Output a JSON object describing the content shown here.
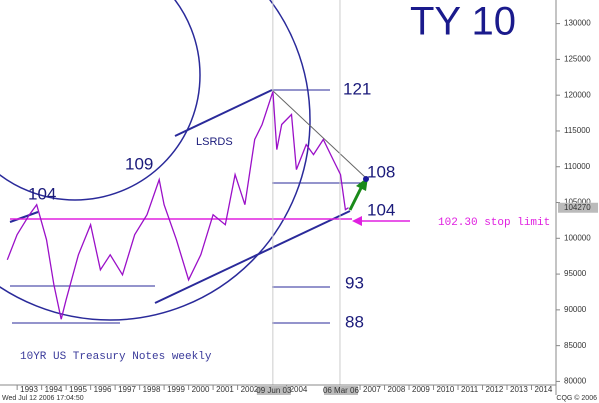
{
  "chart_data": {
    "type": "line",
    "title": "TY 10",
    "subtitle": "10YR US Treasury Notes weekly",
    "x": [
      1992.6,
      1993.0,
      1993.5,
      1993.8,
      1994.2,
      1994.5,
      1994.8,
      1995.0,
      1995.5,
      1996.0,
      1996.4,
      1996.8,
      1997.3,
      1997.8,
      1998.3,
      1998.8,
      1999.0,
      1999.5,
      2000.0,
      2000.5,
      2001.0,
      2001.5,
      2001.9,
      2002.3,
      2002.7,
      2003.0,
      2003.44,
      2003.6,
      2003.8,
      2004.2,
      2004.4,
      2004.8,
      2005.1,
      2005.5,
      2005.9,
      2006.2,
      2006.4,
      2006.53
    ],
    "values": [
      97000,
      100500,
      103300,
      104700,
      99800,
      93500,
      88700,
      91400,
      97700,
      101900,
      95600,
      97700,
      94900,
      100500,
      103300,
      108200,
      104700,
      99800,
      94200,
      97700,
      103300,
      101900,
      108900,
      104700,
      113800,
      115900,
      120500,
      112400,
      115900,
      117300,
      109600,
      113100,
      111700,
      113800,
      111000,
      108900,
      104000,
      104270
    ],
    "color": "#9b10c8",
    "xlim": [
      1992.3,
      2015.0
    ],
    "xticks": [
      1993,
      1994,
      1995,
      1996,
      1997,
      1998,
      1999,
      2000,
      2001,
      2002,
      2004,
      2007,
      2008,
      2009,
      2010,
      2011,
      2012,
      2013,
      2014
    ],
    "ylim": [
      79500,
      133300
    ],
    "yticks": [
      80000,
      85000,
      90000,
      95000,
      100000,
      105000,
      110000,
      115000,
      120000,
      125000,
      130000
    ],
    "last_value": 104270,
    "x_markers": [
      {
        "x": 2003.44,
        "label": "09 Jun 03"
      },
      {
        "x": 2006.18,
        "label": "06 Mar 06"
      }
    ],
    "annotations": [
      "104",
      "109",
      "LSRDS",
      "121",
      "108",
      "104",
      "93",
      "88",
      "102.30 stop limit"
    ],
    "footer_left": "Wed Jul 12 2006 17:04:50",
    "footer_right": "CQG © 2006"
  }
}
